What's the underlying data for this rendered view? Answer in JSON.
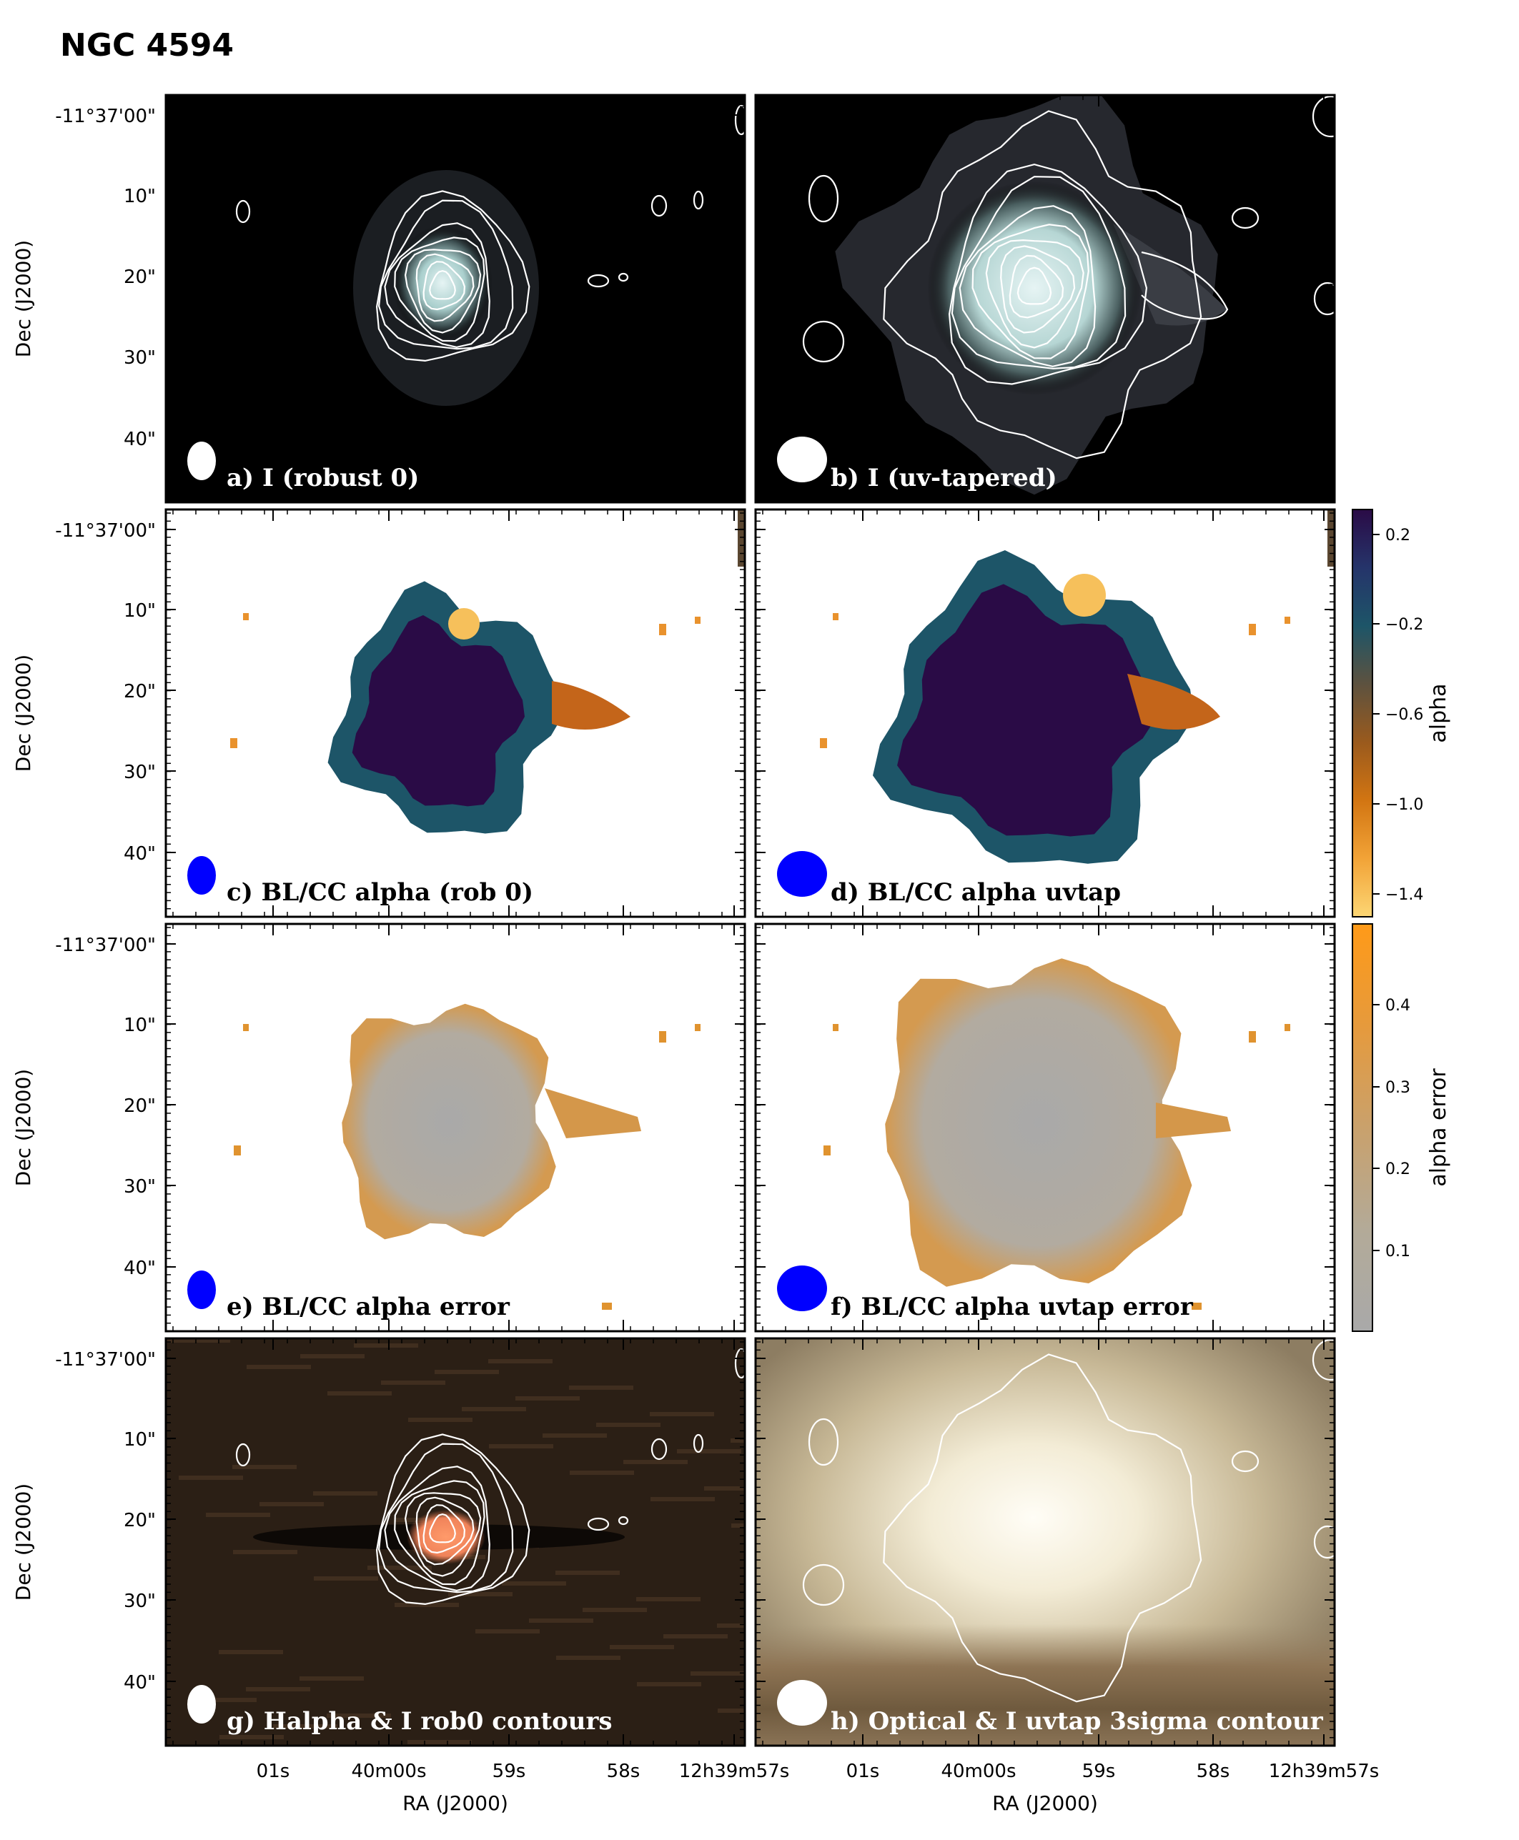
{
  "figure": {
    "title": "NGC 4594",
    "ra_axis_label": "RA (J2000)",
    "dec_axis_label": "Dec (J2000)",
    "ra_tick_labels": [
      "01s",
      "40m00s",
      "59s",
      "58s",
      "12h39m57s"
    ],
    "dec_tick_labels": [
      "-11°37'00\"",
      "10\"",
      "20\"",
      "30\"",
      "40\""
    ]
  },
  "panels": [
    {
      "id": "a",
      "label": "a) I (robust 0)",
      "kind": "intensity",
      "beam": "small-white"
    },
    {
      "id": "b",
      "label": "b) I (uv-tapered)",
      "kind": "intensity-tapered",
      "beam": "large-white"
    },
    {
      "id": "c",
      "label": "c) BL/CC alpha (rob 0)",
      "kind": "alpha",
      "beam": "small-blue"
    },
    {
      "id": "d",
      "label": "d) BL/CC alpha uvtap",
      "kind": "alpha-tapered",
      "beam": "large-blue"
    },
    {
      "id": "e",
      "label": "e)  BL/CC alpha error",
      "kind": "error",
      "beam": "small-blue"
    },
    {
      "id": "f",
      "label": "f) BL/CC alpha uvtap error",
      "kind": "error-tapered",
      "beam": "large-blue"
    },
    {
      "id": "g",
      "label": "g) Halpha & I rob0 contours",
      "kind": "halpha",
      "beam": "small-white"
    },
    {
      "id": "h",
      "label": "h) Optical & I uvtap 3sigma contour",
      "kind": "optical",
      "beam": "large-white"
    }
  ],
  "colorbars": [
    {
      "id": "alpha",
      "label": "alpha",
      "ticks": [
        "0.2",
        "−0.2",
        "−0.6",
        "−1.0",
        "−1.4"
      ],
      "colors": [
        "#2a0b46",
        "#25346a",
        "#1d5568",
        "#5d523f",
        "#9a5a1d",
        "#d27512",
        "#f2a337",
        "#fcd674"
      ]
    },
    {
      "id": "alpha_error",
      "label": "alpha error",
      "ticks": [
        "0.4",
        "0.3",
        "0.2",
        "0.1"
      ],
      "colors": [
        "#ff9a18",
        "#e69a3c",
        "#c9a16c",
        "#b3aa98",
        "#a9a9a9"
      ]
    }
  ]
}
